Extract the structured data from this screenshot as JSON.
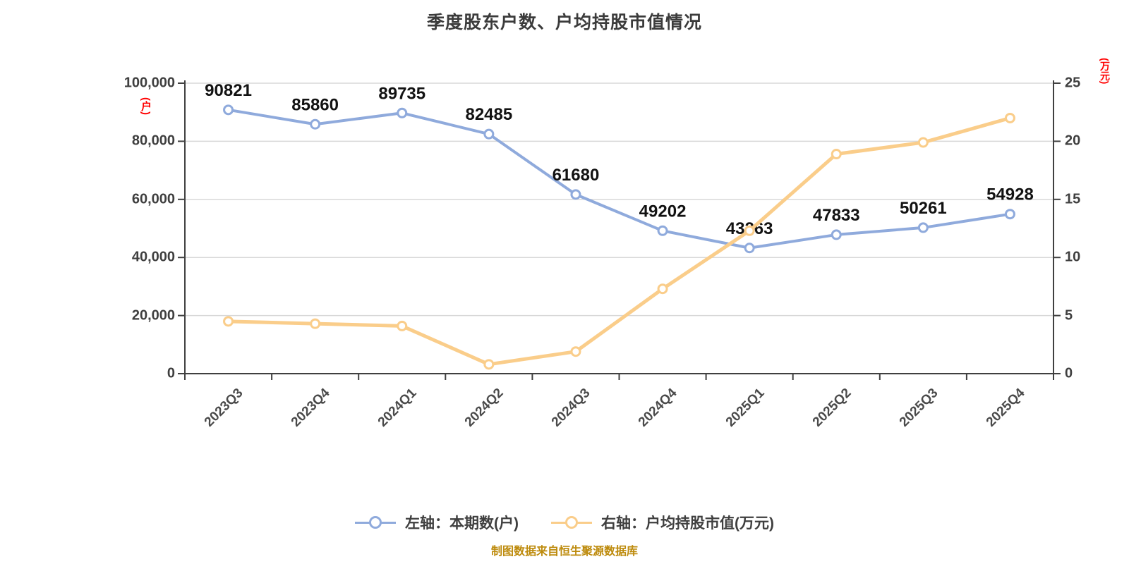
{
  "title": "季度股东户数、户均持股市值情况",
  "footer": {
    "source_note": "制图数据来自恒生聚源数据库"
  },
  "colors": {
    "title_text": "#3B3B3B",
    "axis_line": "#404040",
    "gridline": "#D8D8D8",
    "data_label": "#121212",
    "tick_text": "#3F3F3F",
    "axis_unit_red": "#FF0000",
    "footer_gold": "#BD8A0B",
    "series_blue": "#8FAADC",
    "series_yellow": "#FACD8A"
  },
  "chart_data": {
    "type": "line",
    "title": "季度股东户数、户均持股市值情况",
    "categories": [
      "2023Q3",
      "2023Q4",
      "2024Q1",
      "2024Q2",
      "2024Q3",
      "2024Q4",
      "2025Q1",
      "2025Q2",
      "2025Q3",
      "2025Q4"
    ],
    "series": [
      {
        "name": "左轴：本期数(户)",
        "axis": "left",
        "color": "#8FAADC",
        "show_point_labels": true,
        "values": [
          90821,
          85860,
          89735,
          82485,
          61680,
          49202,
          43263,
          47833,
          50261,
          54928
        ]
      },
      {
        "name": "右轴：户均持股市值(万元)",
        "axis": "right",
        "color": "#FACD8A",
        "show_point_labels": false,
        "values": [
          4.5,
          4.3,
          4.1,
          0.8,
          1.9,
          7.3,
          12.3,
          18.9,
          19.9,
          22.0
        ]
      }
    ],
    "left_axis": {
      "unit": "(户)",
      "min": 0,
      "max": 100000,
      "step": 20000,
      "tick_labels": [
        "0",
        "20,000",
        "40,000",
        "60,000",
        "80,000",
        "100,000"
      ]
    },
    "right_axis": {
      "unit": "(万元)",
      "min": 0,
      "max": 25,
      "step": 5,
      "tick_labels": [
        "0",
        "5",
        "10",
        "15",
        "20",
        "25"
      ]
    },
    "grid": true,
    "legend_position": "bottom"
  }
}
